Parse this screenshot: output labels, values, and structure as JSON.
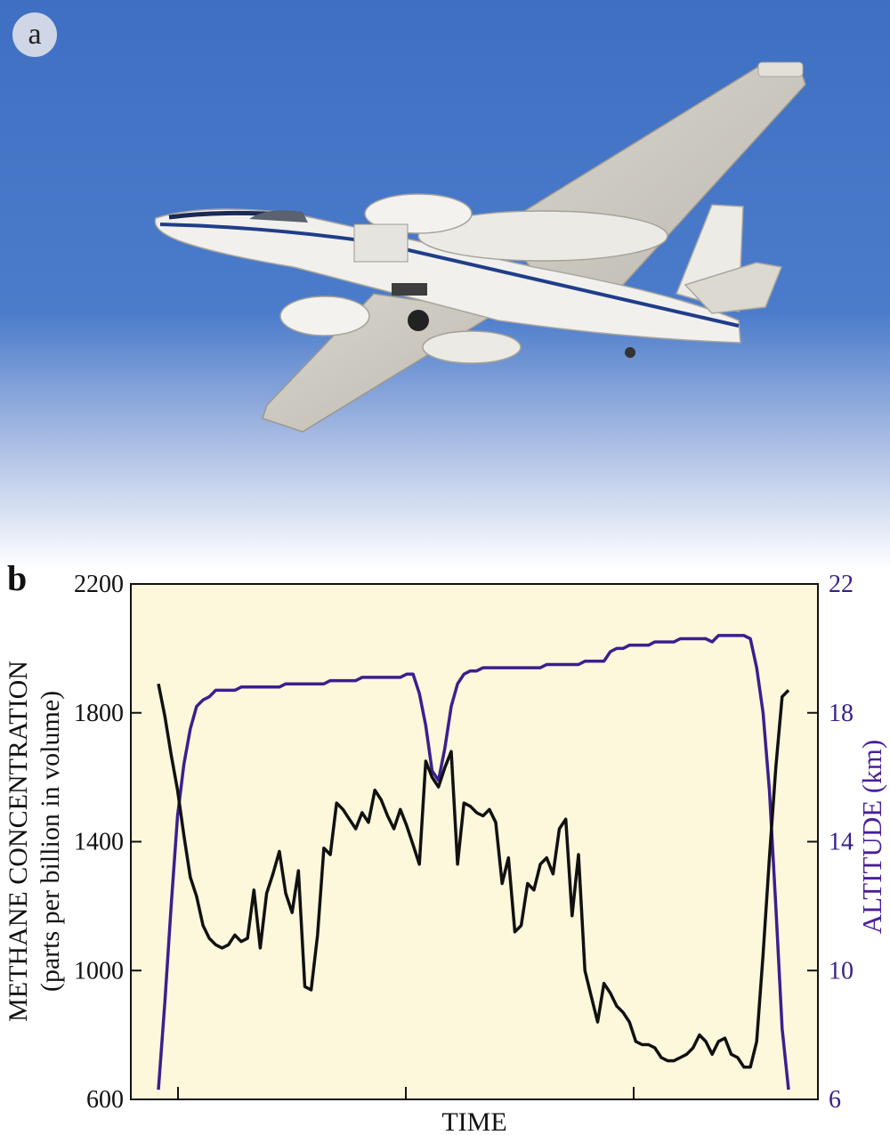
{
  "panel_a": {
    "label": "a"
  },
  "panel_b": {
    "label": "b"
  },
  "chart_data": {
    "type": "line",
    "xlabel": "TIME",
    "ylabel_left_line1": "METHANE CONCENTRATION",
    "ylabel_left_line2": "(parts per billion in volume)",
    "ylabel_right": "ALTITUDE (km)",
    "y_left": {
      "range": [
        600,
        2200
      ],
      "ticks": [
        "600",
        "1000",
        "1400",
        "1800",
        "2200"
      ]
    },
    "y_right": {
      "range": [
        6,
        22
      ],
      "ticks": [
        "6",
        "10",
        "14",
        "18",
        "22"
      ]
    },
    "x_ticks_count": 3,
    "colors": {
      "methane": "#111111",
      "altitude": "#3b1f8f",
      "background": "#fdf8dc"
    },
    "series": [
      {
        "axis": "left",
        "x": [
          1,
          2,
          3,
          4,
          5,
          6,
          7,
          8,
          9,
          10,
          11,
          12,
          13,
          14,
          15,
          16,
          17,
          18,
          19,
          20,
          21,
          22,
          23,
          24,
          25,
          26,
          27,
          28,
          29,
          30,
          31,
          32,
          33,
          34,
          35,
          36,
          37,
          38,
          39,
          40,
          41,
          42,
          43,
          44,
          45,
          46,
          47,
          48,
          49,
          50,
          51,
          52,
          53,
          54,
          55,
          56,
          57,
          58,
          59,
          60,
          61,
          62,
          63,
          64,
          65,
          66,
          67,
          68,
          69,
          70,
          71,
          72,
          73,
          74,
          75,
          76,
          77,
          78,
          79,
          80,
          81,
          82,
          83,
          84,
          85,
          86,
          87,
          88,
          89,
          90,
          91,
          92,
          93,
          94,
          95,
          96,
          97,
          98,
          99,
          100
        ],
        "values": [
          1890,
          1790,
          1670,
          1560,
          1420,
          1290,
          1230,
          1140,
          1100,
          1080,
          1070,
          1080,
          1110,
          1090,
          1100,
          1250,
          1070,
          1240,
          1300,
          1370,
          1240,
          1180,
          1310,
          950,
          940,
          1110,
          1380,
          1360,
          1520,
          1500,
          1470,
          1440,
          1490,
          1460,
          1560,
          1530,
          1480,
          1440,
          1500,
          1450,
          1390,
          1330,
          1650,
          1600,
          1570,
          1630,
          1680,
          1330,
          1520,
          1510,
          1490,
          1480,
          1500,
          1460,
          1270,
          1350,
          1120,
          1140,
          1270,
          1250,
          1330,
          1350,
          1300,
          1440,
          1470,
          1170,
          1360,
          1000,
          920,
          840,
          960,
          930,
          890,
          870,
          840,
          780,
          770,
          770,
          760,
          730,
          720,
          720,
          730,
          740,
          760,
          800,
          780,
          740,
          780,
          790,
          740,
          730,
          700,
          700,
          780,
          1050,
          1350,
          1630,
          1850,
          1870
        ]
      },
      {
        "axis": "right",
        "x": [
          1,
          2,
          3,
          4,
          5,
          6,
          7,
          8,
          9,
          10,
          11,
          12,
          13,
          14,
          15,
          16,
          17,
          18,
          19,
          20,
          21,
          22,
          23,
          24,
          25,
          26,
          27,
          28,
          29,
          30,
          31,
          32,
          33,
          34,
          35,
          36,
          37,
          38,
          39,
          40,
          41,
          42,
          43,
          44,
          45,
          46,
          47,
          48,
          49,
          50,
          51,
          52,
          53,
          54,
          55,
          56,
          57,
          58,
          59,
          60,
          61,
          62,
          63,
          64,
          65,
          66,
          67,
          68,
          69,
          70,
          71,
          72,
          73,
          74,
          75,
          76,
          77,
          78,
          79,
          80,
          81,
          82,
          83,
          84,
          85,
          86,
          87,
          88,
          89,
          90,
          91,
          92,
          93,
          94,
          95,
          96,
          97,
          98,
          99,
          100
        ],
        "values": [
          6.3,
          9.0,
          12.0,
          14.8,
          16.4,
          17.5,
          18.2,
          18.4,
          18.5,
          18.7,
          18.7,
          18.7,
          18.7,
          18.8,
          18.8,
          18.8,
          18.8,
          18.8,
          18.8,
          18.8,
          18.9,
          18.9,
          18.9,
          18.9,
          18.9,
          18.9,
          18.9,
          19.0,
          19.0,
          19.0,
          19.0,
          19.0,
          19.1,
          19.1,
          19.1,
          19.1,
          19.1,
          19.1,
          19.1,
          19.2,
          19.2,
          18.6,
          17.6,
          16.2,
          15.9,
          16.9,
          18.2,
          18.9,
          19.2,
          19.3,
          19.3,
          19.4,
          19.4,
          19.4,
          19.4,
          19.4,
          19.4,
          19.4,
          19.4,
          19.4,
          19.4,
          19.5,
          19.5,
          19.5,
          19.5,
          19.5,
          19.5,
          19.6,
          19.6,
          19.6,
          19.6,
          19.9,
          20.0,
          20.0,
          20.1,
          20.1,
          20.1,
          20.1,
          20.2,
          20.2,
          20.2,
          20.2,
          20.3,
          20.3,
          20.3,
          20.3,
          20.3,
          20.2,
          20.4,
          20.4,
          20.4,
          20.4,
          20.4,
          20.3,
          19.4,
          18.0,
          15.6,
          12.0,
          8.2,
          6.3
        ]
      }
    ]
  }
}
